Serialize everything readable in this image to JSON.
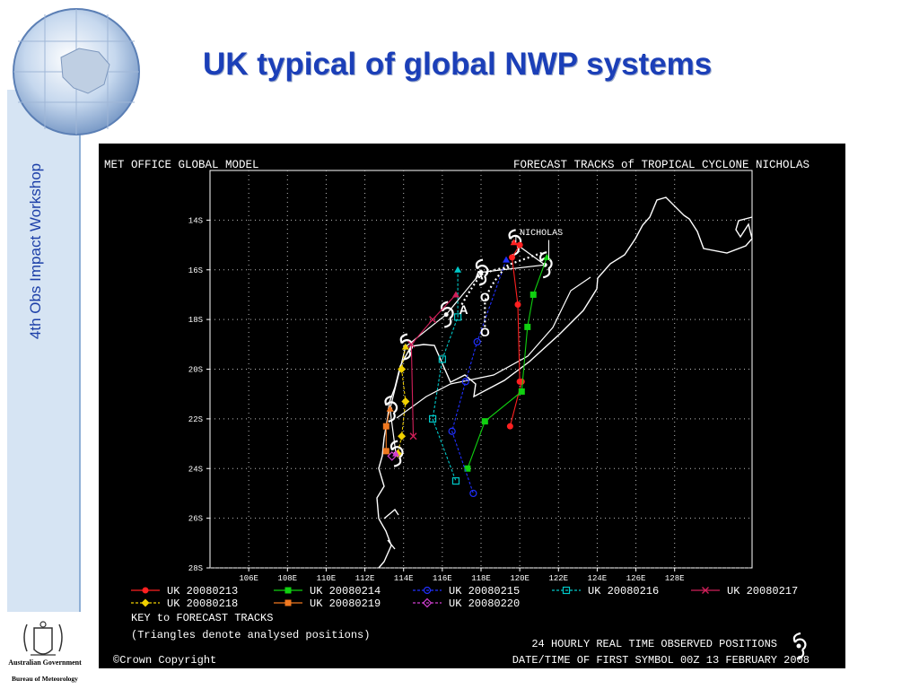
{
  "slide": {
    "title": "UK typical of global NWP systems",
    "side_label": "4th Obs Impact Workshop",
    "logo_line1": "Australian Government",
    "logo_line2": "Bureau of Meteorology"
  },
  "chart_data": {
    "type": "line",
    "header_left": "MET OFFICE GLOBAL MODEL",
    "header_right": "FORECAST TRACKS of TROPICAL CYCLONE NICHOLAS",
    "xlim": [
      104,
      132
    ],
    "ylim": [
      -28,
      -12
    ],
    "x_ticks": [
      106,
      108,
      110,
      112,
      114,
      116,
      118,
      120,
      122,
      124,
      126,
      128
    ],
    "x_tick_labels": [
      "106E",
      "108E",
      "110E",
      "112E",
      "114E",
      "116E",
      "118E",
      "120E",
      "122E",
      "124E",
      "126E",
      "128E"
    ],
    "y_ticks": [
      -14,
      -16,
      -18,
      -20,
      -22,
      -24,
      -26,
      -28
    ],
    "y_tick_labels": [
      "14S",
      "16S",
      "18S",
      "20S",
      "22S",
      "24S",
      "26S",
      "28S"
    ],
    "grid": true,
    "storm_label": "NICHOLAS",
    "annotations": [
      {
        "text": "A",
        "x": 117.9,
        "y": -16.2
      },
      {
        "text": "O",
        "x": 118.2,
        "y": -17.1
      },
      {
        "text": "A",
        "x": 117.1,
        "y": -17.6
      },
      {
        "text": "O",
        "x": 118.2,
        "y": -18.5
      }
    ],
    "observed_track": [
      [
        119.7,
        -14.9
      ],
      [
        121.3,
        -15.8
      ],
      [
        118.0,
        -16.1
      ],
      [
        116.2,
        -17.8
      ],
      [
        114.1,
        -19.1
      ],
      [
        113.3,
        -21.6
      ],
      [
        113.6,
        -23.4
      ]
    ],
    "series": [
      {
        "name": "UK 20080213",
        "color": "#ff2020",
        "marker": "circle-filled",
        "x": [
          119.7,
          120.0,
          119.6,
          119.9,
          120.0,
          120.1,
          119.5
        ],
        "y": [
          -14.9,
          -15.0,
          -15.5,
          -17.4,
          -20.5,
          -20.5,
          -22.3
        ]
      },
      {
        "name": "UK 20080214",
        "color": "#10d010",
        "marker": "square-filled",
        "x": [
          121.4,
          120.7,
          120.4,
          120.1,
          118.2,
          117.3
        ],
        "y": [
          -15.5,
          -17.0,
          -18.3,
          -20.9,
          -22.1,
          -24.0
        ]
      },
      {
        "name": "UK 20080215",
        "color": "#2030ff",
        "marker": "circle-open",
        "x": [
          119.3,
          117.8,
          117.2,
          116.5,
          117.6
        ],
        "y": [
          -15.6,
          -18.9,
          -20.5,
          -22.5,
          -25.0
        ]
      },
      {
        "name": "UK 20080216",
        "color": "#00c8c8",
        "marker": "square-open",
        "x": [
          116.8,
          116.8,
          116.0,
          115.5,
          116.7
        ],
        "y": [
          -16.0,
          -17.9,
          -19.6,
          -22.0,
          -24.5
        ]
      },
      {
        "name": "UK 20080217",
        "color": "#d0205a",
        "marker": "x",
        "x": [
          116.7,
          115.5,
          114.4,
          114.5
        ],
        "y": [
          -17.0,
          -18.0,
          -19.0,
          -22.7
        ]
      },
      {
        "name": "UK 20080218",
        "color": "#f0d000",
        "marker": "diamond-filled",
        "x": [
          114.1,
          113.9,
          114.1,
          113.9,
          113.7
        ],
        "y": [
          -19.1,
          -20.0,
          -21.3,
          -22.7,
          -23.4
        ]
      },
      {
        "name": "UK 20080219",
        "color": "#f07820",
        "marker": "square-filled",
        "x": [
          113.3,
          113.1,
          113.1
        ],
        "y": [
          -21.6,
          -22.3,
          -23.3
        ]
      },
      {
        "name": "UK 20080220",
        "color": "#d040d0",
        "marker": "diamond-open",
        "x": [
          113.6,
          113.4
        ],
        "y": [
          -23.4,
          -23.5
        ]
      }
    ],
    "legend_key_title": "KEY to FORECAST TRACKS",
    "legend_note": "(Triangles denote analysed positions)",
    "observed_note": "24 HOURLY REAL TIME OBSERVED POSITIONS",
    "copyright": "©Crown Copyright",
    "date_note": "DATE/TIME OF FIRST SYMBOL 00Z 13 FEBRUARY 2008"
  }
}
